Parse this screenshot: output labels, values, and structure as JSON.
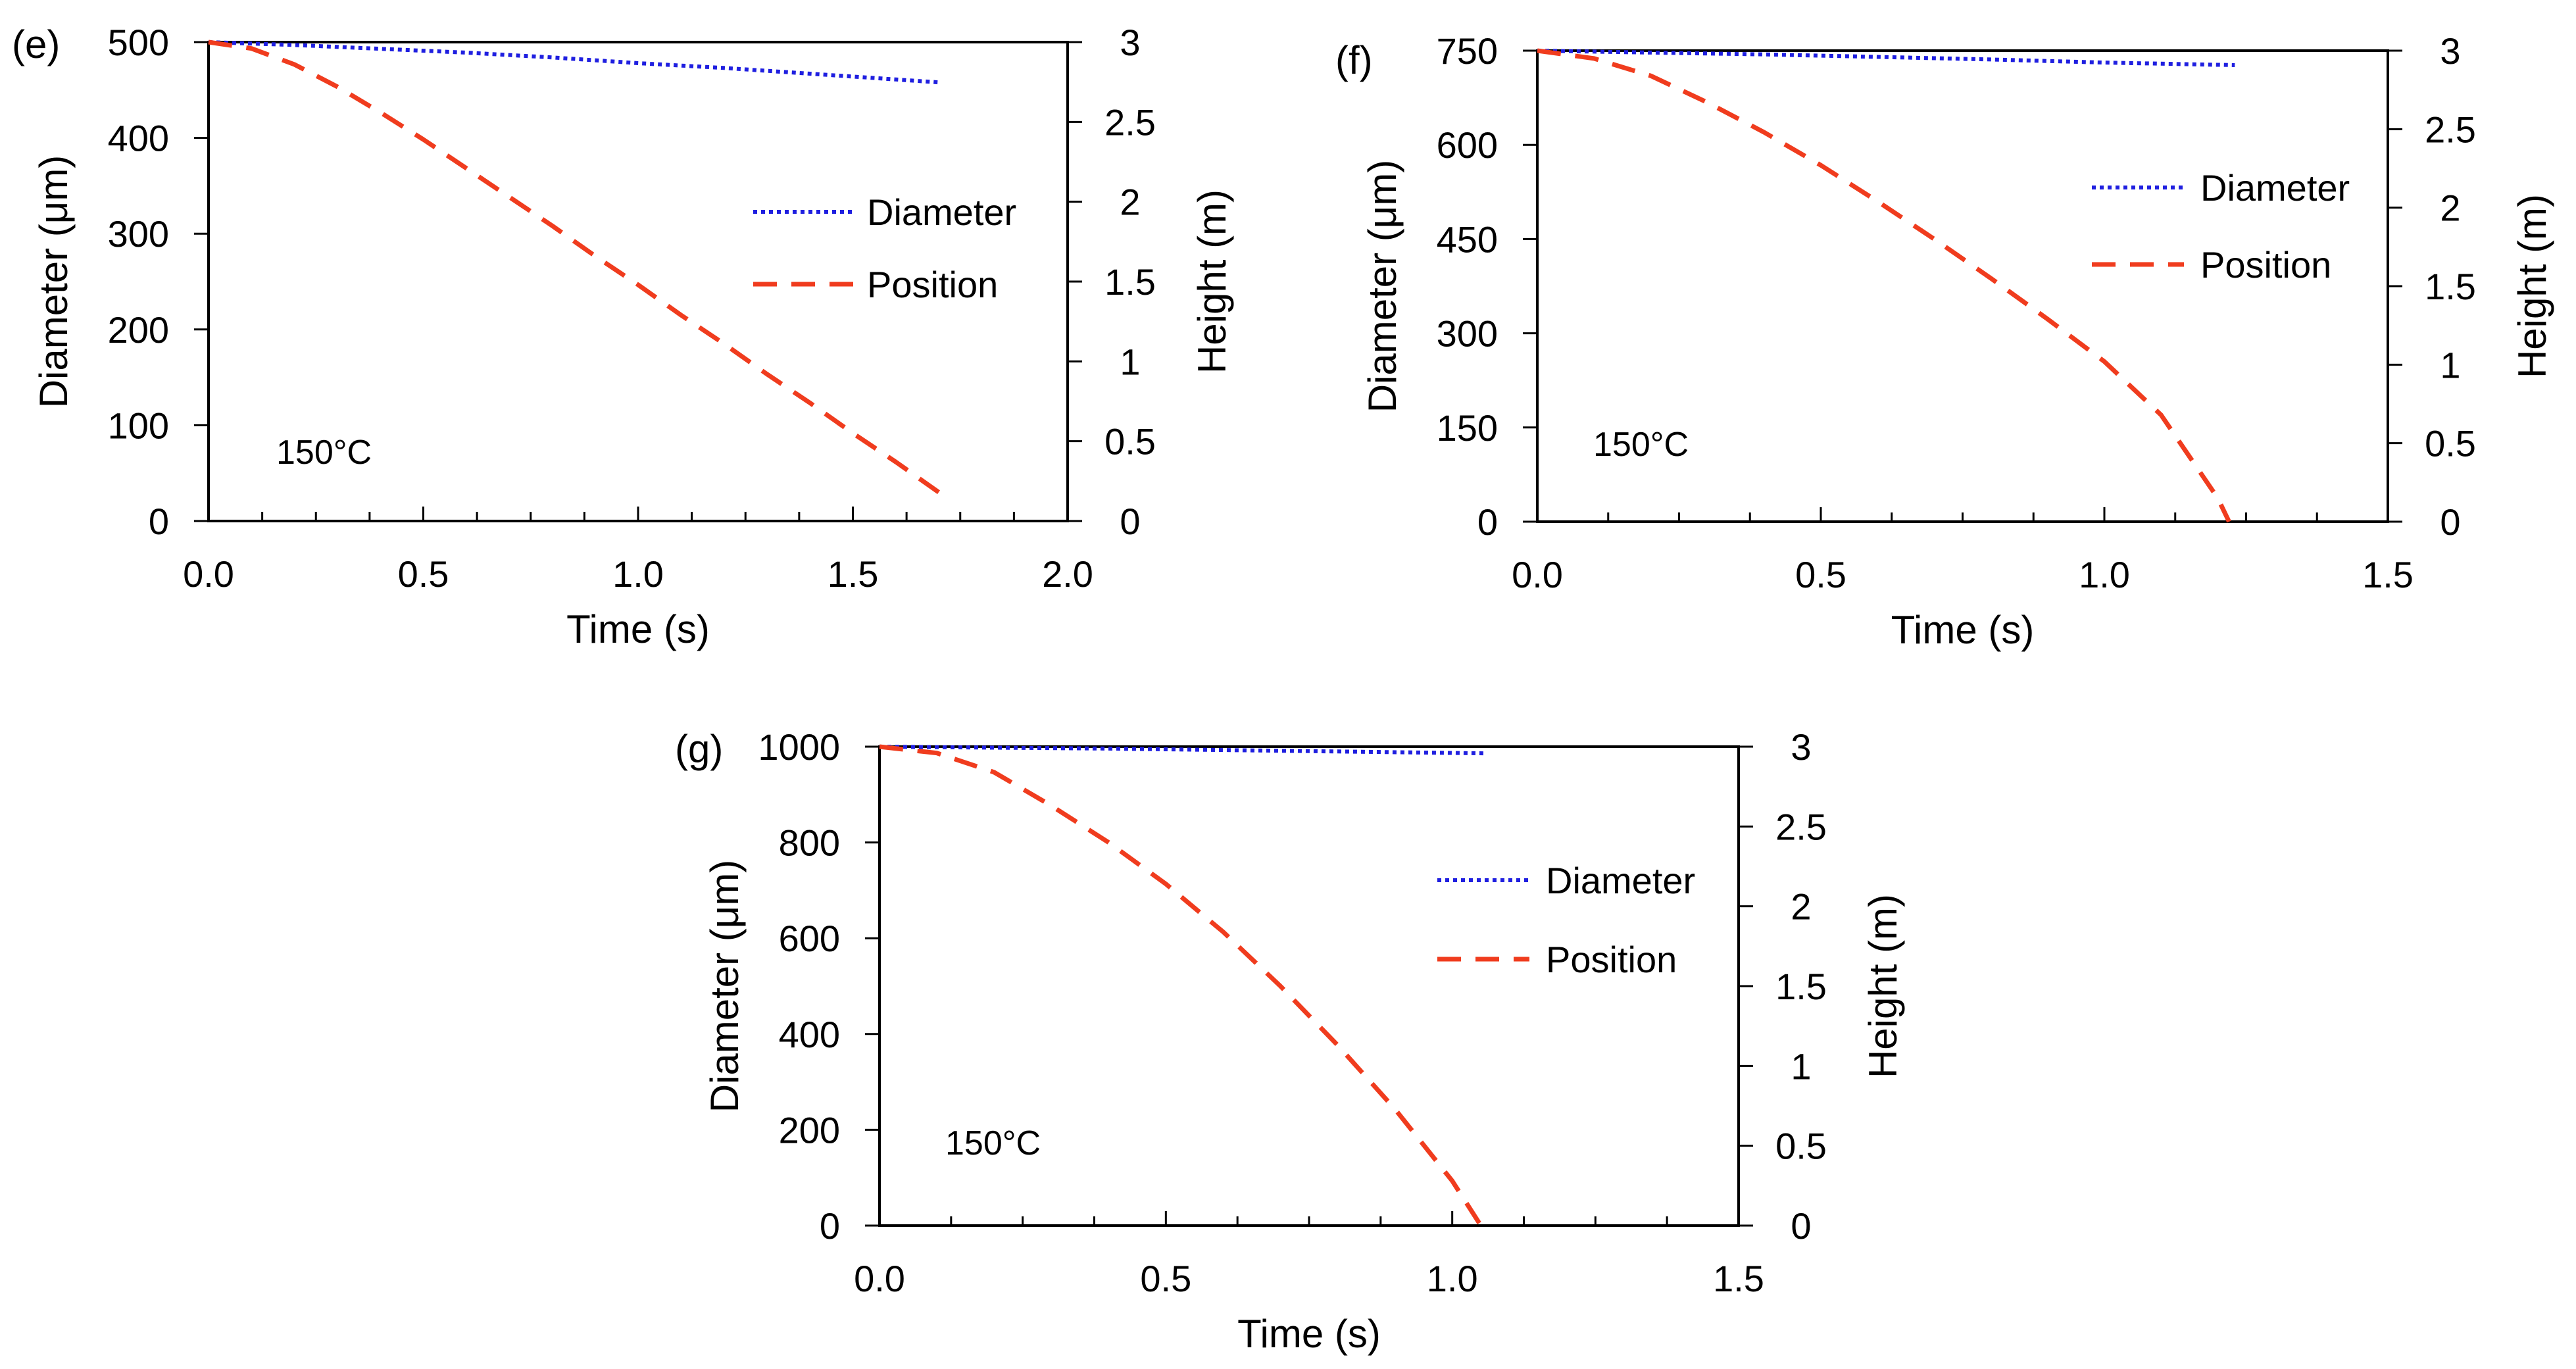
{
  "chart_data": [
    {
      "panel_label": "(e)",
      "type": "line",
      "annotation": "150°C",
      "xlabel": "Time (s)",
      "ylabel": "Diameter (μm)",
      "y2label": "Height (m)",
      "xlim": [
        0,
        2
      ],
      "ylim": [
        0,
        500
      ],
      "y2lim": [
        0,
        3
      ],
      "xticks": [
        "0.0",
        "0.5",
        "1.0",
        "1.5",
        "2.0"
      ],
      "yticks": [
        "0",
        "100",
        "200",
        "300",
        "400",
        "500"
      ],
      "y2ticks": [
        "0",
        "0.5",
        "1",
        "1.5",
        "2",
        "2.5",
        "3"
      ],
      "legend_position": "center-right",
      "series": [
        {
          "name": "Diameter",
          "axis": "left",
          "style": "dotted",
          "color": "#1f1fe0",
          "x": [
            0,
            0.2,
            0.4,
            0.6,
            0.8,
            1.0,
            1.2,
            1.4,
            1.6,
            1.7
          ],
          "y": [
            500,
            497,
            493,
            489,
            484,
            478,
            473,
            467,
            461,
            458
          ]
        },
        {
          "name": "Position",
          "axis": "right",
          "style": "dashed",
          "color": "#f03c1e",
          "x": [
            0,
            0.1,
            0.2,
            0.3,
            0.4,
            0.5,
            0.6,
            0.7,
            0.8,
            0.9,
            1.0,
            1.1,
            1.2,
            1.3,
            1.4,
            1.5,
            1.6,
            1.7
          ],
          "y": [
            3.0,
            2.96,
            2.86,
            2.72,
            2.56,
            2.39,
            2.21,
            2.03,
            1.85,
            1.66,
            1.48,
            1.29,
            1.11,
            0.92,
            0.74,
            0.55,
            0.37,
            0.18
          ]
        }
      ]
    },
    {
      "panel_label": "(f)",
      "type": "line",
      "annotation": "150°C",
      "xlabel": "Time (s)",
      "ylabel": "Diameter (μm)",
      "y2label": "Height (m)",
      "xlim": [
        0,
        1.5
      ],
      "ylim": [
        0,
        750
      ],
      "y2lim": [
        0,
        3
      ],
      "xticks": [
        "0.0",
        "0.5",
        "1.0",
        "1.5"
      ],
      "yticks": [
        "0",
        "150",
        "300",
        "450",
        "600",
        "750"
      ],
      "y2ticks": [
        "0",
        "0.5",
        "1",
        "1.5",
        "2",
        "2.5",
        "3"
      ],
      "legend_position": "top-right",
      "series": [
        {
          "name": "Diameter",
          "axis": "left",
          "style": "dotted",
          "color": "#1f1fe0",
          "x": [
            0,
            0.2,
            0.4,
            0.6,
            0.8,
            1.0,
            1.23
          ],
          "y": [
            750,
            747,
            744,
            740,
            736,
            731,
            727
          ]
        },
        {
          "name": "Position",
          "axis": "right",
          "style": "dashed",
          "color": "#f03c1e",
          "x": [
            0,
            0.1,
            0.2,
            0.3,
            0.4,
            0.5,
            0.6,
            0.7,
            0.8,
            0.9,
            1.0,
            1.1,
            1.2,
            1.22
          ],
          "y": [
            3.0,
            2.95,
            2.84,
            2.67,
            2.48,
            2.27,
            2.04,
            1.8,
            1.55,
            1.29,
            1.02,
            0.68,
            0.15,
            0.0
          ]
        }
      ]
    },
    {
      "panel_label": "(g)",
      "type": "line",
      "annotation": "150°C",
      "xlabel": "Time (s)",
      "ylabel": "Diameter (μm)",
      "y2label": "Height (m)",
      "xlim": [
        0,
        1.5
      ],
      "ylim": [
        0,
        1000
      ],
      "y2lim": [
        0,
        3
      ],
      "xticks": [
        "0.0",
        "0.5",
        "1.0",
        "1.5"
      ],
      "yticks": [
        "0",
        "200",
        "400",
        "600",
        "800",
        "1000"
      ],
      "y2ticks": [
        "0",
        "0.5",
        "1",
        "1.5",
        "2",
        "2.5",
        "3"
      ],
      "legend_position": "center-right",
      "series": [
        {
          "name": "Diameter",
          "axis": "left",
          "style": "dotted",
          "color": "#1f1fe0",
          "x": [
            0,
            0.2,
            0.4,
            0.6,
            0.8,
            1.06
          ],
          "y": [
            1000,
            998,
            996,
            993,
            990,
            986
          ]
        },
        {
          "name": "Position",
          "axis": "right",
          "style": "dashed",
          "color": "#f03c1e",
          "x": [
            0,
            0.1,
            0.2,
            0.3,
            0.4,
            0.5,
            0.6,
            0.7,
            0.8,
            0.9,
            1.0,
            1.05
          ],
          "y": [
            3.0,
            2.96,
            2.84,
            2.63,
            2.4,
            2.14,
            1.84,
            1.5,
            1.13,
            0.73,
            0.28,
            0.0
          ]
        }
      ]
    }
  ]
}
